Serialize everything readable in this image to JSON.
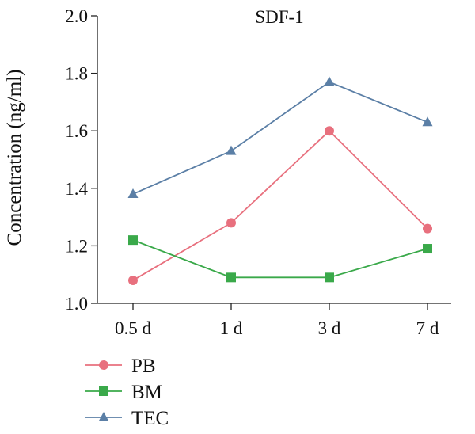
{
  "chart_data": {
    "type": "line",
    "title": "SDF-1",
    "xlabel": "",
    "ylabel": "Concentration (ng/ml)",
    "categories": [
      "0.5 d",
      "1 d",
      "3 d",
      "7 d"
    ],
    "ylim": [
      1.0,
      2.0
    ],
    "yticks": [
      "1.0",
      "1.2",
      "1.4",
      "1.6",
      "1.8",
      "2.0"
    ],
    "grid": false,
    "legend_position": "bottom-left",
    "series": [
      {
        "name": "PB",
        "values": [
          1.08,
          1.28,
          1.6,
          1.26
        ],
        "color": "#e8707e",
        "marker": "circle"
      },
      {
        "name": "BM",
        "values": [
          1.22,
          1.09,
          1.09,
          1.19
        ],
        "color": "#3aa94a",
        "marker": "square"
      },
      {
        "name": "TEC",
        "values": [
          1.38,
          1.53,
          1.77,
          1.63
        ],
        "color": "#5b7fa6",
        "marker": "triangle"
      }
    ]
  }
}
